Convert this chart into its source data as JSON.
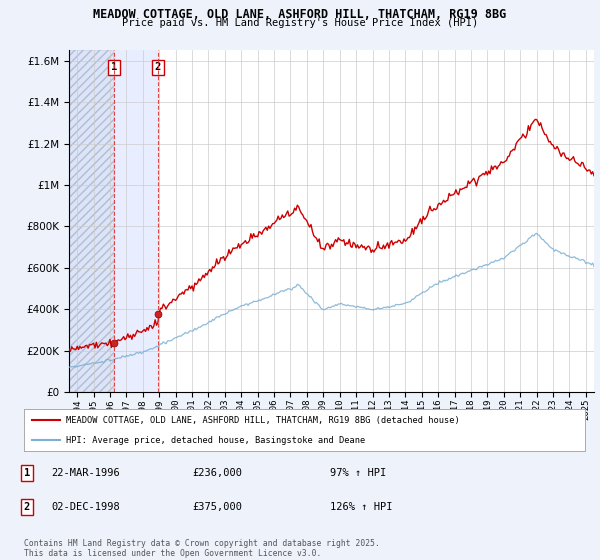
{
  "title_line1": "MEADOW COTTAGE, OLD LANE, ASHFORD HILL, THATCHAM, RG19 8BG",
  "title_line2": "Price paid vs. HM Land Registry's House Price Index (HPI)",
  "background_color": "#eef2fb",
  "plot_bg_color": "#ffffff",
  "hatch_bg_color": "#dce4f5",
  "between_bg_color": "#e8eeff",
  "grid_color": "#cccccc",
  "red_line_color": "#cc0000",
  "blue_line_color": "#7bafd4",
  "sale1_date_x": 1996.23,
  "sale2_date_x": 1998.92,
  "sale1_price": 236000,
  "sale2_price": 375000,
  "ylim_max": 1650000,
  "xlim_min": 1993.5,
  "xlim_max": 2025.5,
  "xticks": [
    1994,
    1995,
    1996,
    1997,
    1998,
    1999,
    2000,
    2001,
    2002,
    2003,
    2004,
    2005,
    2006,
    2007,
    2008,
    2009,
    2010,
    2011,
    2012,
    2013,
    2014,
    2015,
    2016,
    2017,
    2018,
    2019,
    2020,
    2021,
    2022,
    2023,
    2024,
    2025
  ],
  "yticks": [
    0,
    200000,
    400000,
    600000,
    800000,
    1000000,
    1200000,
    1400000,
    1600000
  ],
  "legend_label1": "MEADOW COTTAGE, OLD LANE, ASHFORD HILL, THATCHAM, RG19 8BG (detached house)",
  "legend_label2": "HPI: Average price, detached house, Basingstoke and Deane",
  "ann1_date": "22-MAR-1996",
  "ann1_price": "£236,000",
  "ann1_hpi": "97% ↑ HPI",
  "ann2_date": "02-DEC-1998",
  "ann2_price": "£375,000",
  "ann2_hpi": "126% ↑ HPI",
  "footer": "Contains HM Land Registry data © Crown copyright and database right 2025.\nThis data is licensed under the Open Government Licence v3.0."
}
